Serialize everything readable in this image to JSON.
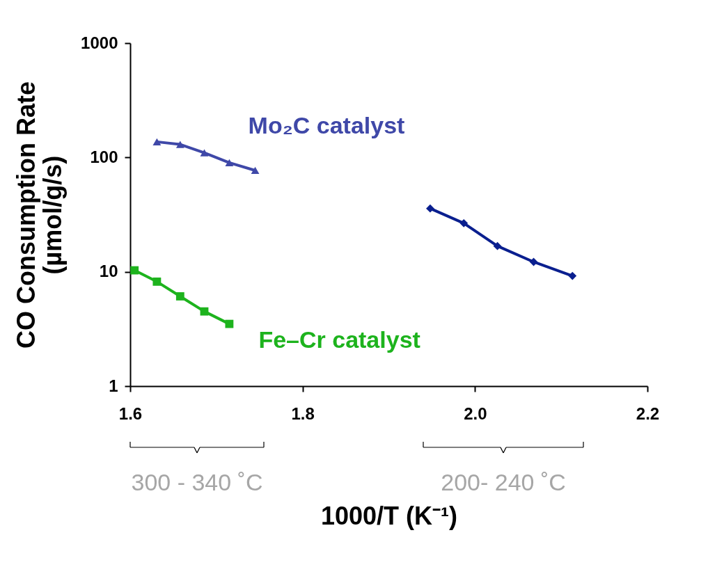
{
  "chart_data": {
    "type": "line",
    "xlabel": "1000/T (K⁻¹)",
    "ylabel": "CO Consumption Rate (µmol/g/s)",
    "xlim": [
      1.6,
      2.2
    ],
    "xticks": [
      {
        "value": 1.6,
        "label": "1.6"
      },
      {
        "value": 1.8,
        "label": "1.8"
      },
      {
        "value": 2.0,
        "label": "2.0"
      },
      {
        "value": 2.2,
        "label": "2.2"
      }
    ],
    "ylim": [
      1,
      1000
    ],
    "yticks": [
      1,
      10,
      100,
      1000
    ],
    "log": "y",
    "grid": false,
    "line_style": "solid",
    "series": [
      {
        "name": "Mo₂C catalyst",
        "color": "#3f48a8",
        "marker": "triangle",
        "x": [
          1.631,
          1.658,
          1.686,
          1.715,
          1.745
        ],
        "values": [
          137,
          130,
          110,
          90,
          77
        ]
      },
      {
        "color": "#0a1f8f",
        "marker": "diamond",
        "x": [
          1.948,
          1.987,
          2.026,
          2.068,
          2.113
        ],
        "values": [
          35.8,
          26.6,
          16.8,
          12.2,
          9.2
        ]
      },
      {
        "name": "Fe–Cr catalyst",
        "color": "#1db31d",
        "marker": "square",
        "x": [
          1.605,
          1.631,
          1.658,
          1.686,
          1.715
        ],
        "values": [
          10.3,
          8.2,
          6.1,
          4.5,
          3.5
        ]
      }
    ],
    "annotations": [
      "300 - 340 ˚C",
      "200- 240 ˚C"
    ]
  }
}
